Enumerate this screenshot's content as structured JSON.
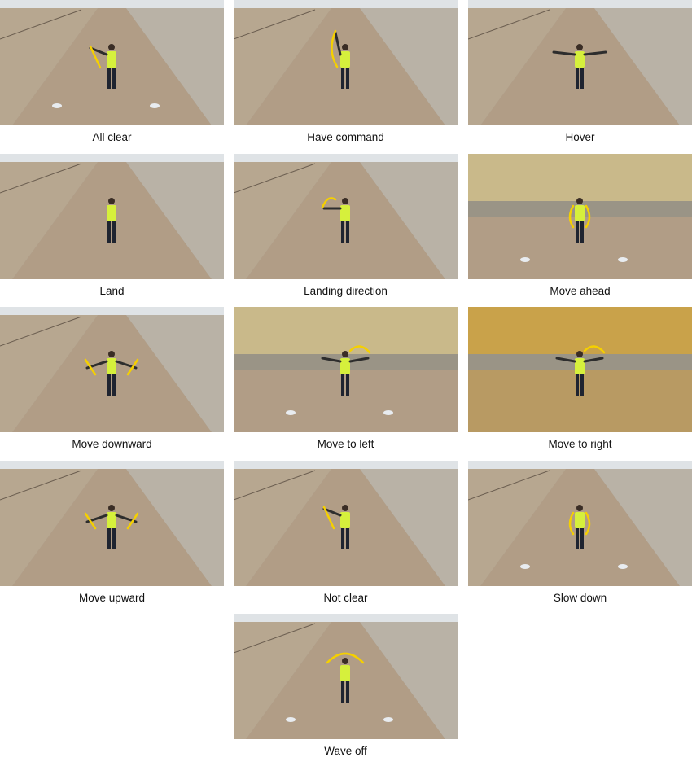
{
  "figure": {
    "panels": [
      {
        "caption": "All clear",
        "scene": "road",
        "gesture": "all-clear",
        "discs": true
      },
      {
        "caption": "Have command",
        "scene": "road",
        "gesture": "have-command",
        "discs": false
      },
      {
        "caption": "Hover",
        "scene": "road",
        "gesture": "hover",
        "discs": false
      },
      {
        "caption": "Land",
        "scene": "road",
        "gesture": "land",
        "discs": false
      },
      {
        "caption": "Landing direction",
        "scene": "road",
        "gesture": "landing-direction",
        "discs": false
      },
      {
        "caption": "Move ahead",
        "scene": "field",
        "gesture": "move-ahead",
        "discs": true
      },
      {
        "caption": "Move downward",
        "scene": "road",
        "gesture": "move-downward",
        "discs": false
      },
      {
        "caption": "Move to left",
        "scene": "field",
        "gesture": "move-to-left",
        "discs": true
      },
      {
        "caption": "Move to right",
        "scene": "field-golden",
        "gesture": "move-to-right",
        "discs": false
      },
      {
        "caption": "Move upward",
        "scene": "road",
        "gesture": "move-upward",
        "discs": false
      },
      {
        "caption": "Not clear",
        "scene": "road",
        "gesture": "not-clear",
        "discs": false
      },
      {
        "caption": "Slow down",
        "scene": "road",
        "gesture": "slow-down",
        "discs": true
      },
      {
        "caption": "Wave off",
        "scene": "road",
        "gesture": "wave-off",
        "discs": true
      }
    ],
    "colors": {
      "road": "#b19d86",
      "verge": "#a8a49a",
      "field": "#c9b98a",
      "field_golden": "#c9a24a",
      "vest": "#d6f03c",
      "arrow": "#f5d000",
      "sky": "#dfe3e6"
    }
  }
}
